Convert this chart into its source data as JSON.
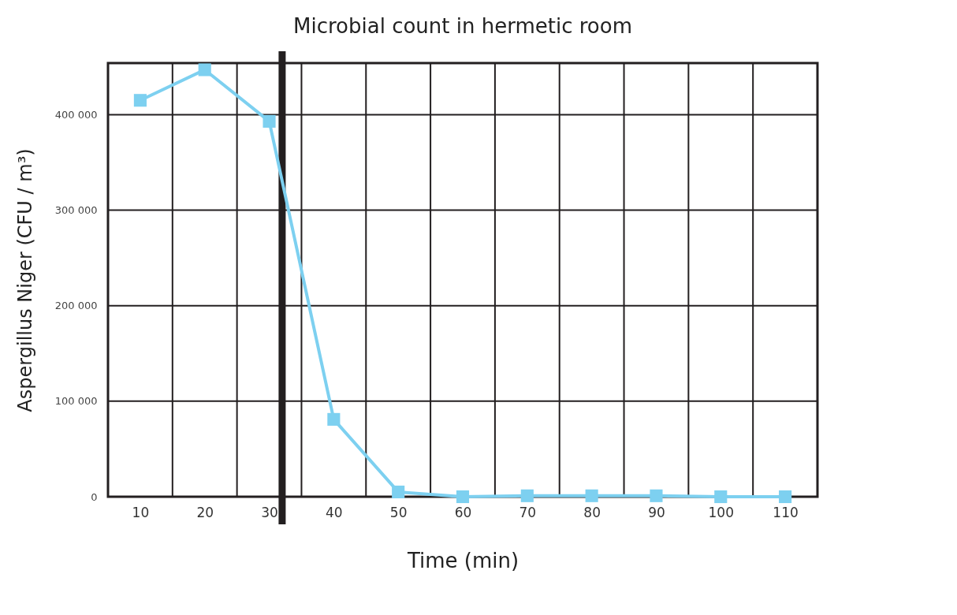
{
  "chart_data": {
    "type": "line",
    "title": "Microbial count in hermetic room",
    "xlabel": "Time (min)",
    "ylabel": "Aspergillus Niger (CFU / m³)",
    "x": [
      10,
      20,
      30,
      40,
      50,
      60,
      70,
      80,
      90,
      100,
      110
    ],
    "series": [
      {
        "color": "#7dd0f0",
        "values": [
          415000,
          447000,
          393000,
          81000,
          5000,
          0,
          1000,
          1000,
          1000,
          0,
          0
        ]
      }
    ],
    "xlim": [
      5,
      115
    ],
    "xticks": [
      10,
      20,
      30,
      40,
      50,
      60,
      70,
      80,
      90,
      100,
      110,
      {
        "value": 15,
        "label": null
      },
      {
        "value": 25,
        "label": null
      },
      {
        "value": 35,
        "label": null
      },
      {
        "value": 45,
        "label": null
      },
      {
        "value": 55,
        "label": null
      },
      {
        "value": 65,
        "label": null
      },
      {
        "value": 75,
        "label": null
      },
      {
        "value": 85,
        "label": null
      },
      {
        "value": 95,
        "label": null
      },
      {
        "value": 105,
        "label": null
      }
    ],
    "ylim": [
      0,
      454000
    ],
    "yticks": [
      {
        "value": 0,
        "label": "0"
      },
      {
        "value": 100000,
        "label": "100 000"
      },
      {
        "value": 200000,
        "label": "200 000"
      },
      {
        "value": 300000,
        "label": "300 000"
      },
      {
        "value": 400000,
        "label": "400 000"
      }
    ],
    "ref_lines": [
      {
        "axis": "x",
        "value": 32,
        "color": "#231f20"
      }
    ],
    "grid": true,
    "marker": "square",
    "line_style": "solid"
  }
}
